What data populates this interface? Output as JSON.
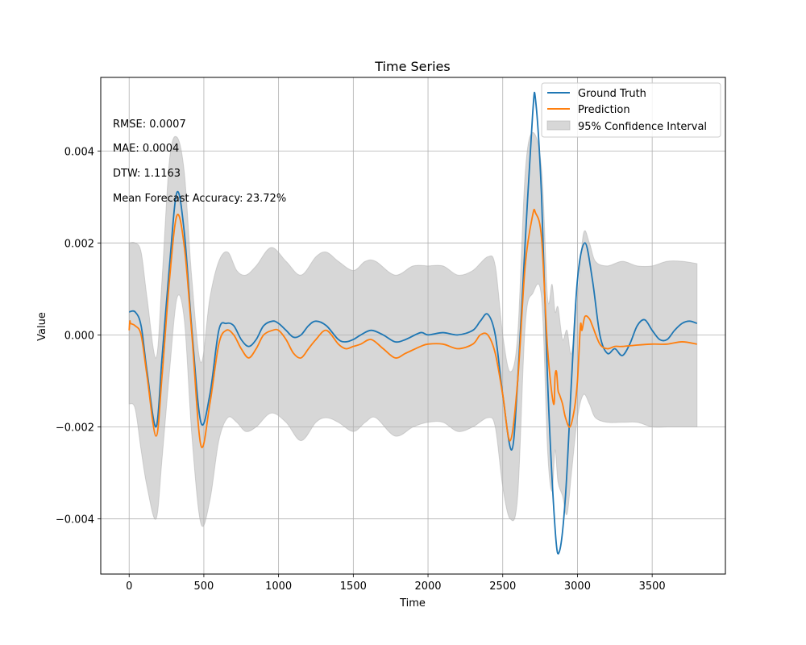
{
  "chart_data": {
    "type": "line",
    "title": "Time Series",
    "xlabel": "Time",
    "ylabel": "Value",
    "xlim": [
      -190,
      3990
    ],
    "ylim": [
      -0.0052,
      0.0056
    ],
    "x_ticks": [
      0,
      500,
      1000,
      1500,
      2000,
      2500,
      3000,
      3500
    ],
    "x_tick_labels": [
      "0",
      "500",
      "1000",
      "1500",
      "2000",
      "2500",
      "3000",
      "3500"
    ],
    "y_ticks": [
      -0.004,
      -0.002,
      0.0,
      0.002,
      0.004
    ],
    "y_tick_labels": [
      "−0.004",
      "−0.002",
      "0.000",
      "0.002",
      "0.004"
    ],
    "grid": true,
    "legend_position": "top-right",
    "annotations": [
      "RMSE: 0.0007",
      "MAE: 0.0004",
      "DTW: 1.1163",
      "Mean Forecast Accuracy: 23.72%"
    ],
    "series": [
      {
        "name": "Ground Truth",
        "color": "#1f77b4",
        "x": [
          0,
          40,
          80,
          120,
          180,
          220,
          270,
          320,
          370,
          420,
          480,
          540,
          600,
          650,
          700,
          750,
          800,
          850,
          900,
          960,
          1000,
          1050,
          1100,
          1150,
          1200,
          1250,
          1320,
          1400,
          1450,
          1500,
          1550,
          1620,
          1700,
          1780,
          1850,
          1950,
          2000,
          2100,
          2200,
          2300,
          2350,
          2400,
          2450,
          2500,
          2560,
          2600,
          2650,
          2700,
          2720,
          2760,
          2800,
          2850,
          2880,
          2920,
          2960,
          3000,
          3050,
          3100,
          3150,
          3200,
          3250,
          3300,
          3350,
          3400,
          3450,
          3500,
          3550,
          3600,
          3650,
          3700,
          3750,
          3800
        ],
        "y": [
          0.0005,
          0.0005,
          0.0002,
          -0.0008,
          -0.002,
          -0.0005,
          0.0015,
          0.0031,
          0.0022,
          0.0001,
          -0.0019,
          -0.0013,
          0.0001,
          0.00025,
          0.0002,
          -0.0001,
          -0.00025,
          -0.0001,
          0.0002,
          0.0003,
          0.00025,
          0.0001,
          -5e-05,
          0.0,
          0.0002,
          0.0003,
          0.0002,
          -0.0001,
          -0.00015,
          -0.0001,
          0.0,
          0.0001,
          0.0,
          -0.00015,
          -0.0001,
          5e-05,
          0.0,
          5e-05,
          0.0,
          0.0001,
          0.0003,
          0.00045,
          0.0,
          -0.0013,
          -0.0025,
          -0.001,
          0.002,
          0.0048,
          0.0051,
          0.003,
          -0.001,
          -0.0042,
          -0.0047,
          -0.0035,
          -0.001,
          0.0012,
          0.002,
          0.0012,
          0.0,
          -0.0004,
          -0.0003,
          -0.00045,
          -0.0002,
          0.0002,
          0.00033,
          0.0001,
          -0.0001,
          -0.0001,
          0.0001,
          0.00025,
          0.0003,
          0.00025
        ]
      },
      {
        "name": "Prediction",
        "color": "#ff7f0e",
        "x": [
          0,
          5,
          10,
          40,
          80,
          120,
          180,
          220,
          270,
          320,
          370,
          420,
          480,
          540,
          600,
          650,
          700,
          750,
          800,
          850,
          900,
          960,
          1000,
          1050,
          1100,
          1150,
          1200,
          1250,
          1320,
          1400,
          1450,
          1500,
          1550,
          1620,
          1700,
          1780,
          1850,
          1950,
          2000,
          2100,
          2200,
          2300,
          2350,
          2400,
          2450,
          2500,
          2550,
          2600,
          2650,
          2700,
          2720,
          2760,
          2800,
          2840,
          2850,
          2860,
          2870,
          2880,
          2900,
          2920,
          2950,
          2980,
          3000,
          3020,
          3030,
          3050,
          3080,
          3100,
          3150,
          3200,
          3250,
          3300,
          3400,
          3500,
          3600,
          3700,
          3800
        ],
        "y": [
          0.0001,
          0.0003,
          0.00025,
          0.0002,
          0.0,
          -0.0009,
          -0.0022,
          -0.0009,
          0.0012,
          0.0026,
          0.0019,
          0.0,
          -0.0024,
          -0.0015,
          -0.0002,
          0.0001,
          0.0,
          -0.0003,
          -0.0005,
          -0.0003,
          0.0,
          0.0001,
          0.0001,
          -0.0001,
          -0.0004,
          -0.0005,
          -0.0003,
          -0.0001,
          0.0001,
          -0.0002,
          -0.0003,
          -0.00025,
          -0.0002,
          -0.0001,
          -0.0003,
          -0.0005,
          -0.0004,
          -0.00025,
          -0.0002,
          -0.0002,
          -0.0003,
          -0.0002,
          0.0,
          0.0,
          -0.0004,
          -0.0013,
          -0.0023,
          -0.001,
          0.0015,
          0.0026,
          0.00265,
          0.0021,
          -0.0003,
          -0.0015,
          -0.0009,
          -0.0008,
          -0.0012,
          -0.0013,
          -0.0015,
          -0.0018,
          -0.002,
          -0.0016,
          -0.001,
          0.0002,
          0.0001,
          0.0004,
          0.00035,
          0.0002,
          -0.0002,
          -0.0003,
          -0.00025,
          -0.00025,
          -0.00022,
          -0.0002,
          -0.0002,
          -0.00015,
          -0.0002
        ]
      },
      {
        "name": "95% Confidence Interval",
        "color": "#b0b0b0",
        "type": "band",
        "x": [
          0,
          40,
          80,
          120,
          180,
          220,
          270,
          320,
          370,
          420,
          480,
          540,
          600,
          660,
          720,
          780,
          850,
          950,
          1050,
          1150,
          1250,
          1320,
          1400,
          1500,
          1580,
          1650,
          1780,
          1900,
          2000,
          2100,
          2200,
          2300,
          2400,
          2450,
          2500,
          2550,
          2600,
          2650,
          2700,
          2760,
          2800,
          2830,
          2850,
          2870,
          2900,
          2930,
          2960,
          3000,
          3040,
          3080,
          3120,
          3200,
          3300,
          3400,
          3500,
          3600,
          3700,
          3800
        ],
        "upper": [
          0.002,
          0.002,
          0.0018,
          0.0008,
          -0.0005,
          0.0012,
          0.0038,
          0.0043,
          0.0035,
          0.0012,
          -0.0006,
          0.0008,
          0.0016,
          0.0018,
          0.0014,
          0.0013,
          0.0015,
          0.0019,
          0.0016,
          0.0013,
          0.0017,
          0.0018,
          0.0016,
          0.0014,
          0.0016,
          0.0016,
          0.0013,
          0.0015,
          0.0015,
          0.0015,
          0.0013,
          0.0014,
          0.0017,
          0.0015,
          0.0,
          -0.0008,
          0.0,
          0.0035,
          0.0044,
          0.0036,
          0.0008,
          0.0011,
          0.0005,
          0.0006,
          -0.0001,
          0.0001,
          -0.0004,
          0.0008,
          0.0022,
          0.002,
          0.0016,
          0.0015,
          0.0016,
          0.0015,
          0.0015,
          0.0016,
          0.0016,
          0.00155
        ],
        "lower": [
          -0.0015,
          -0.0016,
          -0.0025,
          -0.0033,
          -0.004,
          -0.0027,
          -0.0008,
          0.0008,
          0.0003,
          -0.0022,
          -0.0041,
          -0.0036,
          -0.0023,
          -0.0018,
          -0.0019,
          -0.0021,
          -0.002,
          -0.0017,
          -0.0019,
          -0.0023,
          -0.0019,
          -0.0018,
          -0.0019,
          -0.0021,
          -0.0019,
          -0.0018,
          -0.0022,
          -0.002,
          -0.0019,
          -0.0019,
          -0.0021,
          -0.002,
          -0.0018,
          -0.002,
          -0.0033,
          -0.004,
          -0.0035,
          0.0002,
          0.0009,
          0.0008,
          -0.0025,
          -0.0034,
          -0.0025,
          -0.0032,
          -0.0035,
          -0.0039,
          -0.003,
          -0.0018,
          -0.0013,
          -0.0015,
          -0.0018,
          -0.0019,
          -0.0019,
          -0.0019,
          -0.002,
          -0.002,
          -0.002,
          -0.002
        ]
      }
    ]
  }
}
